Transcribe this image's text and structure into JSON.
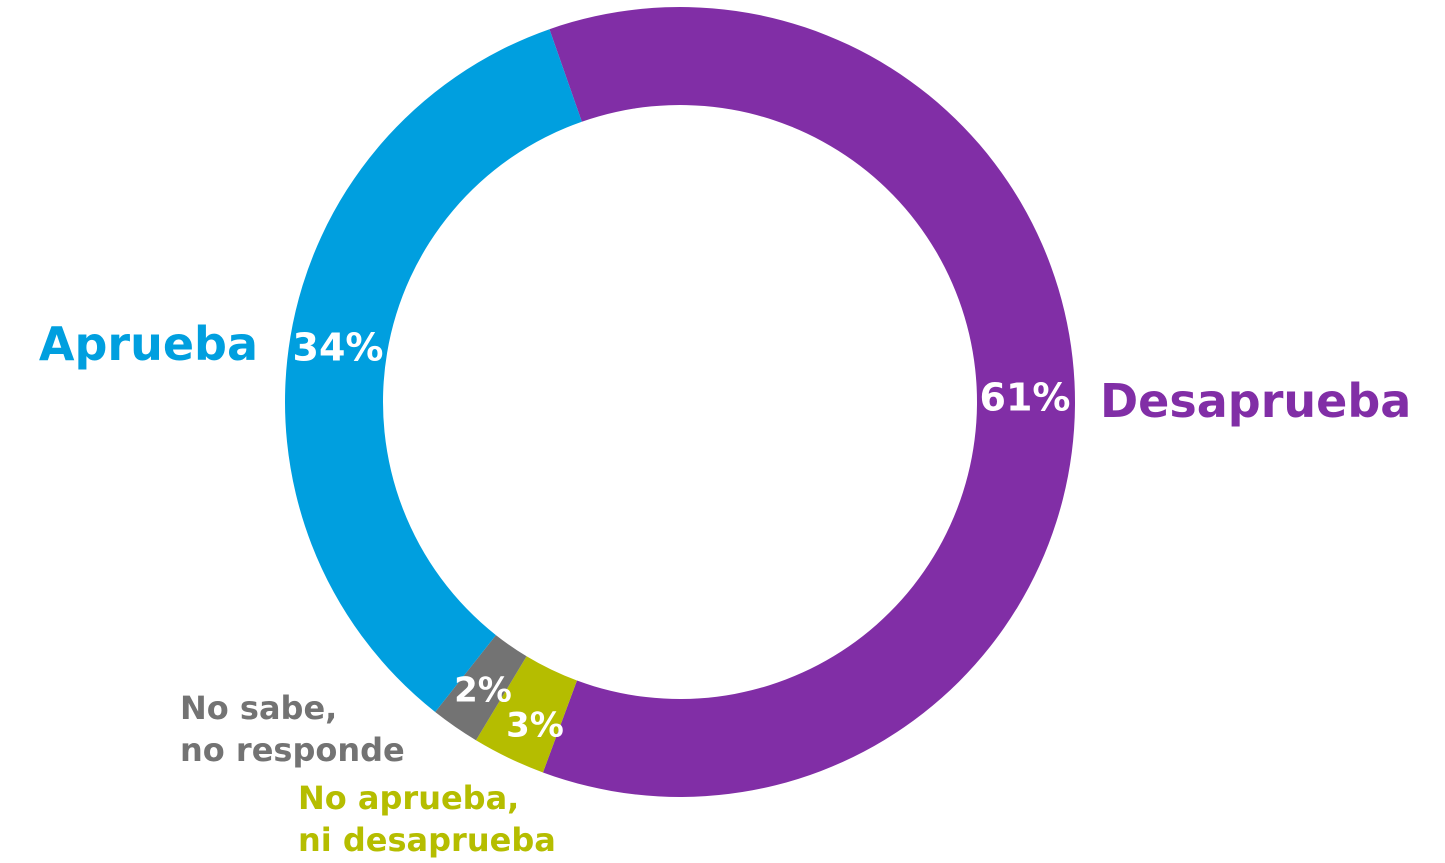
{
  "chart_data": {
    "type": "donut",
    "categories": [
      "Desaprueba",
      "No aprueba,\nni desaprueba",
      "No sabe,\nno responde",
      "Aprueba"
    ],
    "values": [
      61,
      3,
      2,
      34
    ],
    "value_labels": [
      "61%",
      "3%",
      "2%",
      "34%"
    ],
    "colors": [
      "#812ea6",
      "#b5bd00",
      "#737373",
      "#009fdf"
    ]
  }
}
